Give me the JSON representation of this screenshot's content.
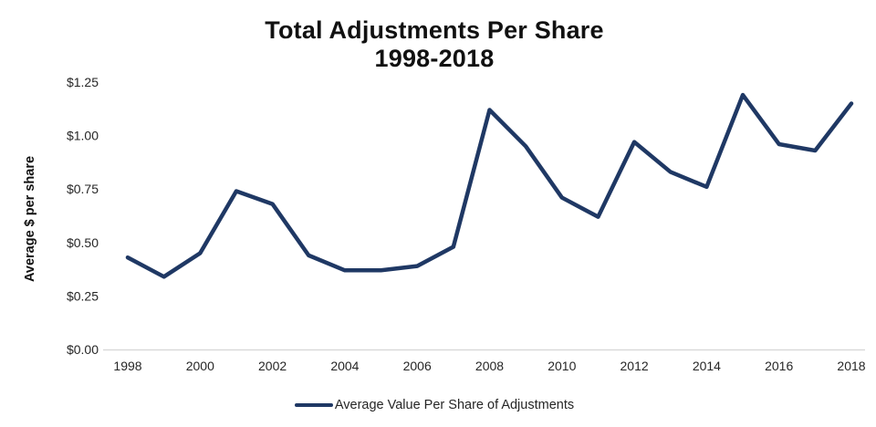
{
  "title": {
    "line1": "Total Adjustments Per Share",
    "line2": "1998-2018"
  },
  "y_axis": {
    "title": "Average $ per share"
  },
  "legend": {
    "label": "Average Value Per Share of Adjustments"
  },
  "colors": {
    "line": "#1f3864",
    "axis_line": "#d9d9d9",
    "tick_text": "#262626",
    "title_text": "#111111",
    "background": "#ffffff"
  },
  "chart_data": {
    "type": "line",
    "title": "Total Adjustments Per Share",
    "subtitle": "1998-2018",
    "xlabel": "",
    "ylabel": "Average $ per share",
    "x": [
      1998,
      1999,
      2000,
      2001,
      2002,
      2003,
      2004,
      2005,
      2006,
      2007,
      2008,
      2009,
      2010,
      2011,
      2012,
      2013,
      2014,
      2015,
      2016,
      2017,
      2018
    ],
    "series": [
      {
        "name": "Average Value Per Share of Adjustments",
        "values": [
          0.43,
          0.34,
          0.45,
          0.74,
          0.68,
          0.44,
          0.37,
          0.37,
          0.39,
          0.48,
          1.12,
          0.95,
          0.71,
          0.62,
          0.97,
          0.83,
          0.76,
          1.19,
          0.96,
          0.93,
          1.15
        ]
      }
    ],
    "ylim": [
      0,
      1.25
    ],
    "ytick_values": [
      0,
      0.25,
      0.5,
      0.75,
      1.0,
      1.25
    ],
    "ytick_labels": [
      "$0.00",
      "$0.25",
      "$0.50",
      "$0.75",
      "$1.00",
      "$1.25"
    ],
    "xtick_values": [
      1998,
      2000,
      2002,
      2004,
      2006,
      2008,
      2010,
      2012,
      2014,
      2016,
      2018
    ],
    "grid": false,
    "legend_position": "bottom"
  }
}
